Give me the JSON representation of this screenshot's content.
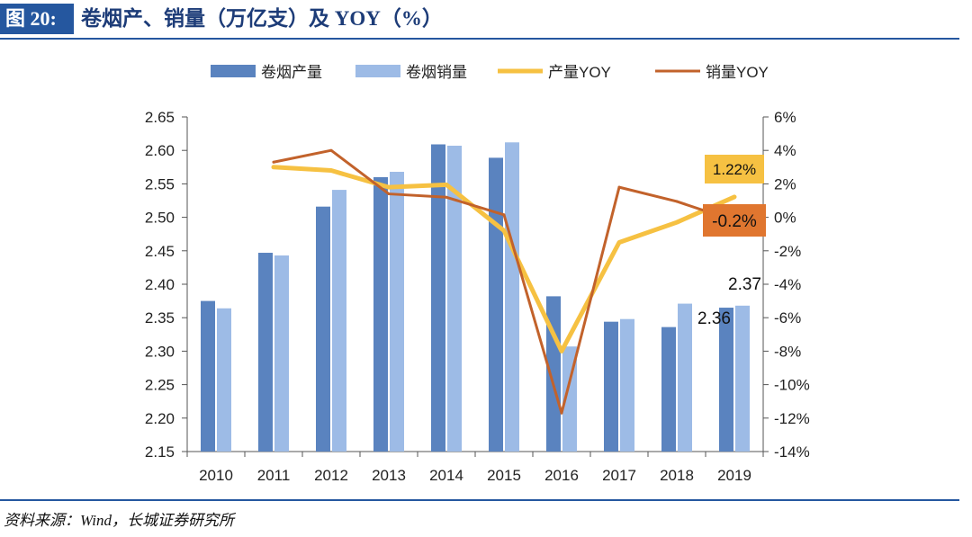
{
  "figure": {
    "label": "图 20:",
    "title": "卷烟产、销量（万亿支）及 YOY（%）",
    "source": "资料来源：Wind，长城证券研究所"
  },
  "colors": {
    "production_bar": "#5a83bf",
    "sales_bar": "#9dbbe6",
    "production_yoy": "#f6c142",
    "sales_yoy": "#c2622b",
    "axis": "#555555",
    "title_band": "#25579f"
  },
  "chart_data": {
    "type": "bar+line",
    "categories": [
      "2010",
      "2011",
      "2012",
      "2013",
      "2014",
      "2015",
      "2016",
      "2017",
      "2018",
      "2019"
    ],
    "series": [
      {
        "name": "卷烟产量",
        "kind": "bar",
        "axis": "left",
        "values": [
          2.375,
          2.447,
          2.516,
          2.56,
          2.609,
          2.589,
          2.382,
          2.344,
          2.336,
          2.365
        ]
      },
      {
        "name": "卷烟销量",
        "kind": "bar",
        "axis": "left",
        "values": [
          2.364,
          2.443,
          2.541,
          2.568,
          2.607,
          2.612,
          2.307,
          2.348,
          2.371,
          2.368
        ]
      },
      {
        "name": "产量YOY",
        "kind": "line",
        "axis": "right",
        "values": [
          null,
          3.0,
          2.8,
          1.8,
          1.95,
          -0.8,
          -8.0,
          -1.5,
          -0.3,
          1.22
        ]
      },
      {
        "name": "销量YOY",
        "kind": "line",
        "axis": "right",
        "values": [
          null,
          3.3,
          4.0,
          1.4,
          1.2,
          0.15,
          -11.7,
          1.8,
          0.95,
          -0.2
        ]
      }
    ],
    "left_axis": {
      "min": 2.15,
      "max": 2.65,
      "step": 0.05,
      "ticks": [
        "2.15",
        "2.20",
        "2.25",
        "2.30",
        "2.35",
        "2.40",
        "2.45",
        "2.50",
        "2.55",
        "2.60",
        "2.65"
      ]
    },
    "right_axis": {
      "min": -14,
      "max": 6,
      "step": 2,
      "ticks": [
        "-14%",
        "-12%",
        "-10%",
        "-8%",
        "-6%",
        "-4%",
        "-2%",
        "0%",
        "2%",
        "4%",
        "6%"
      ]
    },
    "annotations": [
      {
        "text": "1.22%",
        "series": "产量YOY",
        "style": "yellow-box"
      },
      {
        "text": "-0.2%",
        "series": "销量YOY",
        "style": "orange-box"
      },
      {
        "text": "2.37",
        "series": "卷烟销量"
      },
      {
        "text": "2.36",
        "series": "卷烟产量"
      }
    ],
    "legend_position": "top"
  }
}
